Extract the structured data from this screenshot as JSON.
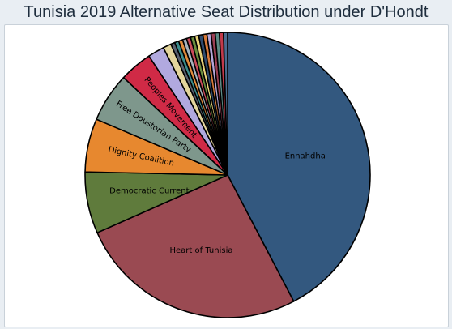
{
  "chart_data": {
    "type": "pie",
    "title": "Tunisia 2019 Alternative Seat Distribution under D'Hondt",
    "start": "12 o'clock",
    "direction": "clockwise",
    "slices": [
      {
        "label": "Ennahdha",
        "value": 91,
        "color": "#33587f",
        "show_label": true,
        "label_style": "horizontal"
      },
      {
        "label": "Heart of Tunisia",
        "value": 56,
        "color": "#9a4a52",
        "show_label": true,
        "label_style": "horizontal"
      },
      {
        "label": "Democratic Current",
        "value": 15,
        "color": "#5f7b3c",
        "show_label": true,
        "label_style": "horizontal"
      },
      {
        "label": "Dignity Coalition",
        "value": 13,
        "color": "#e7882f",
        "show_label": true,
        "label_style": "rotated"
      },
      {
        "label": "Free Doustorian Party",
        "value": 12,
        "color": "#7e978c",
        "show_label": true,
        "label_style": "rotated"
      },
      {
        "label": "Peoples Movement",
        "value": 8,
        "color": "#d02a46",
        "show_label": true,
        "label_style": "rotated"
      },
      {
        "label": "",
        "value": 4,
        "color": "#b1a9df",
        "show_label": false
      },
      {
        "label": "",
        "value": 2,
        "color": "#e3d59c",
        "show_label": false
      },
      {
        "label": "",
        "value": 1,
        "color": "#5a6170",
        "show_label": false
      },
      {
        "label": "",
        "value": 1,
        "color": "#3b8c8c",
        "show_label": false
      },
      {
        "label": "",
        "value": 1,
        "color": "#e28c3c",
        "show_label": false
      },
      {
        "label": "",
        "value": 1,
        "color": "#a7b4bd",
        "show_label": false
      },
      {
        "label": "",
        "value": 1,
        "color": "#c94a5a",
        "show_label": false
      },
      {
        "label": "",
        "value": 1,
        "color": "#6b8e3f",
        "show_label": false
      },
      {
        "label": "",
        "value": 1,
        "color": "#e8d27a",
        "show_label": false
      },
      {
        "label": "",
        "value": 1,
        "color": "#2f4b6e",
        "show_label": false
      },
      {
        "label": "",
        "value": 1,
        "color": "#d77a3a",
        "show_label": false
      },
      {
        "label": "",
        "value": 1,
        "color": "#b4a6d8",
        "show_label": false
      },
      {
        "label": "",
        "value": 1,
        "color": "#9c3f54",
        "show_label": false
      },
      {
        "label": "",
        "value": 1,
        "color": "#5d8b86",
        "show_label": false
      },
      {
        "label": "",
        "value": 1,
        "color": "#c23a4a",
        "show_label": false
      },
      {
        "label": "",
        "value": 1,
        "color": "#4b6b8f",
        "show_label": false
      }
    ]
  }
}
